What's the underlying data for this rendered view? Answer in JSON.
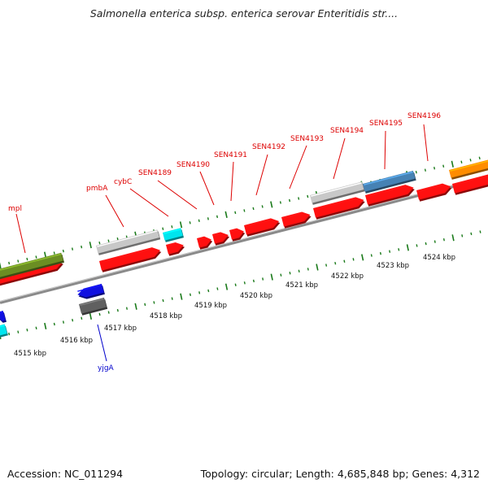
{
  "title": "Salmonella enterica subsp. enterica serovar Enteritidis str....",
  "footer": {
    "accession": "Accession: NC_011294",
    "topology": "Topology: circular; Length: 4,685,848 bp; Genes: 4,312"
  },
  "colors": {
    "cds": "#ff1010",
    "cds_grey": "#c8c8c8",
    "cyan": "#00e5ee",
    "olive": "#6b8e23",
    "steelblue": "#4682b4",
    "orange": "#ff8c00",
    "blue": "#1010e0",
    "darkgrey": "#606060",
    "tick": "#1a7a1a",
    "label_red": "#dd0000",
    "label_blue": "#0000cc"
  },
  "gene_labels": [
    {
      "name": "mpl",
      "strand": "forward"
    },
    {
      "name": "pmbA",
      "strand": "forward"
    },
    {
      "name": "cybC",
      "strand": "forward"
    },
    {
      "name": "SEN4189",
      "strand": "forward"
    },
    {
      "name": "SEN4190",
      "strand": "forward"
    },
    {
      "name": "SEN4191",
      "strand": "forward"
    },
    {
      "name": "SEN4192",
      "strand": "forward"
    },
    {
      "name": "SEN4193",
      "strand": "forward"
    },
    {
      "name": "SEN4194",
      "strand": "forward"
    },
    {
      "name": "SEN4195",
      "strand": "forward"
    },
    {
      "name": "SEN4196",
      "strand": "forward"
    },
    {
      "name": "yjgA",
      "strand": "reverse"
    }
  ],
  "kbp_labels": [
    "4515 kbp",
    "4516 kbp",
    "4517 kbp",
    "4518 kbp",
    "4519 kbp",
    "4520 kbp",
    "4521 kbp",
    "4522 kbp",
    "4523 kbp",
    "4524 kbp"
  ]
}
